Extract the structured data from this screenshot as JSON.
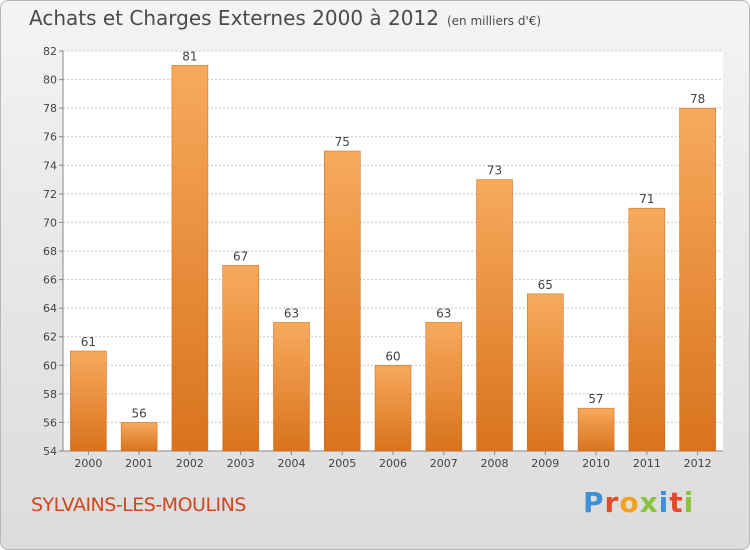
{
  "title": "Achats et Charges Externes 2000 à 2012",
  "unit": "(en milliers d'€)",
  "commune": "SYLVAINS-LES-MOULINS",
  "logo": {
    "text": "Proxiti",
    "letters": [
      {
        "ch": "P",
        "color": "#3d8fd6"
      },
      {
        "ch": "r",
        "color": "#e34a2a"
      },
      {
        "ch": "o",
        "color": "#f2a223"
      },
      {
        "ch": "x",
        "color": "#8ac43f"
      },
      {
        "ch": "i",
        "color": "#3d8fd6"
      },
      {
        "ch": "t",
        "color": "#e34a2a"
      },
      {
        "ch": "i",
        "color": "#8ac43f"
      }
    ]
  },
  "colors": {
    "bar_light": "#f7aa5c",
    "bar_dark": "#d9731d",
    "axis": "#888888",
    "grid": "#c8c8c8",
    "text": "#444444"
  },
  "chart_data": {
    "type": "bar",
    "title": "Achats et Charges Externes 2000 à 2012",
    "subtitle": "(en milliers d'€)",
    "categories": [
      "2000",
      "2001",
      "2002",
      "2003",
      "2004",
      "2005",
      "2006",
      "2007",
      "2008",
      "2009",
      "2010",
      "2011",
      "2012"
    ],
    "values": [
      61,
      56,
      81,
      67,
      63,
      75,
      60,
      63,
      73,
      65,
      57,
      71,
      78
    ],
    "xlabel": "",
    "ylabel": "",
    "ylim": [
      54,
      82
    ],
    "yticks": [
      54,
      56,
      58,
      60,
      62,
      64,
      66,
      68,
      70,
      72,
      74,
      76,
      78,
      80,
      82
    ],
    "grid": true,
    "data_labels": true
  }
}
